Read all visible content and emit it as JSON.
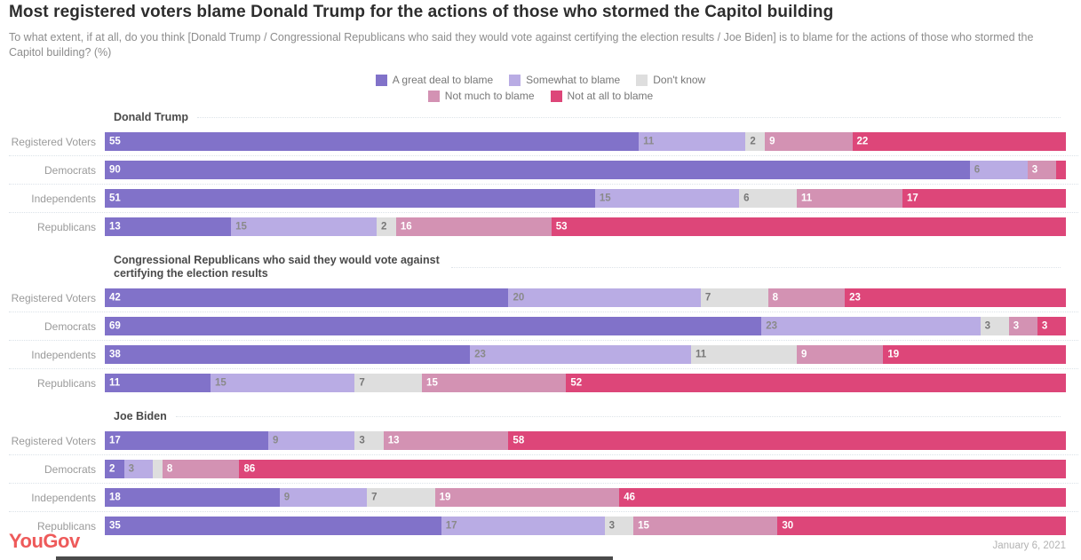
{
  "header": {
    "title": "Most registered voters blame Donald Trump for the actions of those who stormed the Capitol building",
    "subtitle": "To what extent, if at all, do you think [Donald Trump / Congressional Republicans who said they would vote against certifying the election results / Joe Biden] is to blame for the actions of those who stormed the Capitol building? (%)"
  },
  "legend": {
    "rows": [
      [
        {
          "label": "A great deal to blame",
          "color": "#8172C9"
        },
        {
          "label": "Somewhat to blame",
          "color": "#B9ACE4"
        },
        {
          "label": "Don't know",
          "color": "#DEDEDE"
        }
      ],
      [
        {
          "label": "Not much to blame",
          "color": "#D392B3"
        },
        {
          "label": "Not at all to blame",
          "color": "#DD4679"
        }
      ]
    ]
  },
  "chart_data": {
    "type": "bar",
    "orientation": "horizontal-stacked",
    "unit": "%",
    "xlim": [
      0,
      100
    ],
    "series_names": [
      "A great deal to blame",
      "Somewhat to blame",
      "Don't know",
      "Not much to blame",
      "Not at all to blame"
    ],
    "series_colors": [
      "#8172C9",
      "#B9ACE4",
      "#DEDEDE",
      "#D392B3",
      "#DD4679"
    ],
    "value_label_colors": [
      "#ffffff",
      "#8a8a8a",
      "#777777",
      "#ffffff",
      "#ffffff"
    ],
    "min_label_value": 2,
    "sections": [
      {
        "title": "Donald Trump",
        "rows": [
          {
            "label": "Registered Voters",
            "values": [
              55,
              11,
              2,
              9,
              22
            ]
          },
          {
            "label": "Democrats",
            "values": [
              90,
              6,
              0,
              3,
              1
            ]
          },
          {
            "label": "Independents",
            "values": [
              51,
              15,
              6,
              11,
              17
            ]
          },
          {
            "label": "Republicans",
            "values": [
              13,
              15,
              2,
              16,
              53
            ]
          }
        ]
      },
      {
        "title": "Congressional Republicans who said they would vote against certifying the election results",
        "rows": [
          {
            "label": "Registered Voters",
            "values": [
              42,
              20,
              7,
              8,
              23
            ]
          },
          {
            "label": "Democrats",
            "values": [
              69,
              23,
              3,
              3,
              3
            ]
          },
          {
            "label": "Independents",
            "values": [
              38,
              23,
              11,
              9,
              19
            ]
          },
          {
            "label": "Republicans",
            "values": [
              11,
              15,
              7,
              15,
              52
            ]
          }
        ]
      },
      {
        "title": "Joe Biden",
        "rows": [
          {
            "label": "Registered Voters",
            "values": [
              17,
              9,
              3,
              13,
              58
            ]
          },
          {
            "label": "Democrats",
            "values": [
              2,
              3,
              1,
              8,
              86
            ]
          },
          {
            "label": "Independents",
            "values": [
              18,
              9,
              7,
              19,
              46
            ]
          },
          {
            "label": "Republicans",
            "values": [
              35,
              17,
              3,
              15,
              30
            ]
          }
        ]
      }
    ]
  },
  "footer": {
    "brand": "YouGov",
    "brand_color": "#ee5a5a",
    "date": "January 6, 2021"
  }
}
